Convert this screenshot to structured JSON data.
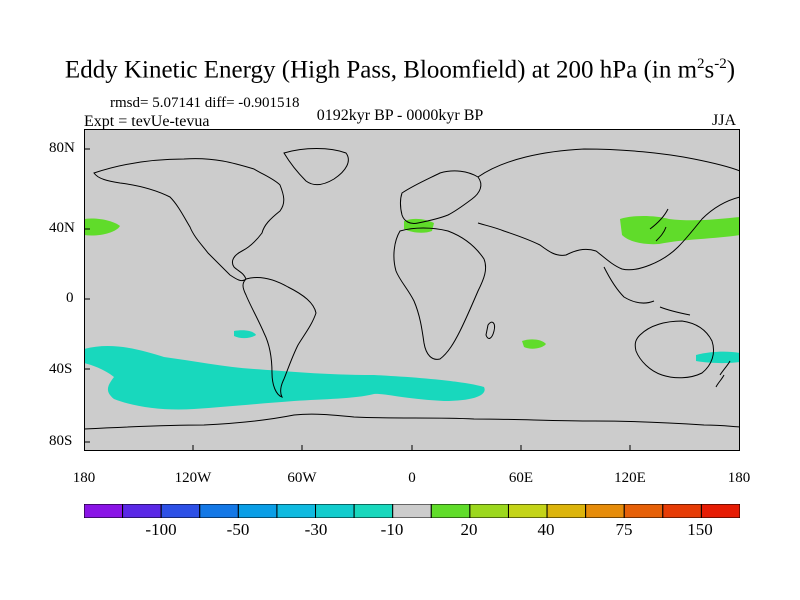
{
  "figure": {
    "title": "Eddy Kinetic Energy (High Pass, Bloomfield) at 200 hPa (in m",
    "title_sup1": "2",
    "title_mid": "s",
    "title_sup2": "-2",
    "title_end": ")",
    "stats": "rmsd= 5.07141 diff= -0.901518",
    "experiment": "Expt = tevUe-tevua",
    "period": "0192kyr BP - 0000kyr BP",
    "season": "JJA"
  },
  "axes": {
    "lat_labels": [
      "80N",
      "40N",
      "0",
      "40S",
      "80S"
    ],
    "lon_labels": [
      "180",
      "120W",
      "60W",
      "0",
      "60E",
      "120E",
      "180"
    ]
  },
  "colorbar": {
    "labels": [
      "-100",
      "-50",
      "-30",
      "-10",
      "20",
      "40",
      "75",
      "150"
    ],
    "colors": [
      "#8a14e6",
      "#5a28e6",
      "#2d50e6",
      "#1478e6",
      "#0a9ee6",
      "#0fbae0",
      "#12cccd",
      "#18d8bd",
      "#cccccc",
      "#60dc2a",
      "#9cd81e",
      "#c4d418",
      "#dcb40c",
      "#e68c0a",
      "#e66008",
      "#e63c06",
      "#e61c04"
    ]
  },
  "colors": {
    "land_ocean": "#cccccc",
    "positive": "#60dc2a",
    "negative": "#18d8bd",
    "coast": "#000000"
  }
}
